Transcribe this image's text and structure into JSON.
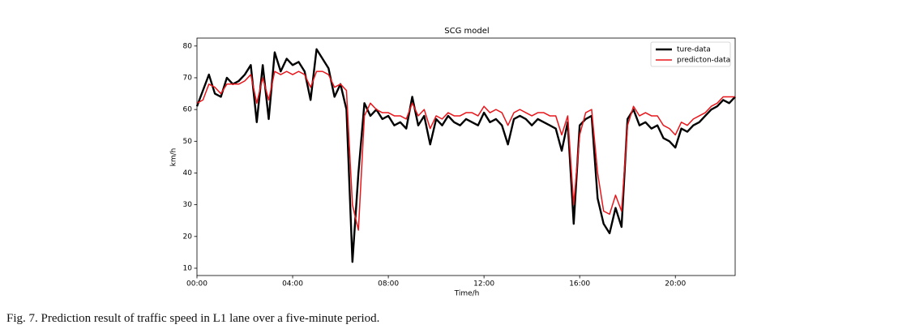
{
  "chart_data": {
    "type": "line",
    "title": "SCG model",
    "x_label": "Time/h",
    "y_label": "km/h",
    "x": [
      0,
      0.25,
      0.5,
      0.75,
      1,
      1.25,
      1.5,
      1.75,
      2,
      2.25,
      2.5,
      2.75,
      3,
      3.25,
      3.5,
      3.75,
      4,
      4.25,
      4.5,
      4.75,
      5,
      5.25,
      5.5,
      5.75,
      6,
      6.25,
      6.5,
      6.75,
      7,
      7.25,
      7.5,
      7.75,
      8,
      8.25,
      8.5,
      8.75,
      9,
      9.25,
      9.5,
      9.75,
      10,
      10.25,
      10.5,
      10.75,
      11,
      11.25,
      11.5,
      11.75,
      12,
      12.25,
      12.5,
      12.75,
      13,
      13.25,
      13.5,
      13.75,
      14,
      14.25,
      14.5,
      14.75,
      15,
      15.25,
      15.5,
      15.75,
      16,
      16.25,
      16.5,
      16.75,
      17,
      17.25,
      17.5,
      17.75,
      18,
      18.25,
      18.5,
      18.75,
      19,
      19.25,
      19.5,
      19.75,
      20,
      20.25,
      20.5,
      20.75,
      21,
      21.25,
      21.5,
      21.75,
      22,
      22.25,
      22.5
    ],
    "series": [
      {
        "name": "ture-data",
        "color": "#000000",
        "values": [
          61,
          66,
          71,
          65,
          64,
          70,
          68,
          69,
          71,
          74,
          56,
          74,
          57,
          78,
          72,
          76,
          74,
          75,
          72,
          63,
          79,
          76,
          73,
          64,
          68,
          60,
          12,
          40,
          62,
          58,
          60,
          57,
          58,
          55,
          56,
          54,
          64,
          55,
          58,
          49,
          57,
          55,
          58,
          56,
          55,
          57,
          56,
          55,
          59,
          56,
          57,
          55,
          49,
          57,
          58,
          57,
          55,
          57,
          56,
          55,
          54,
          47,
          56,
          24,
          55,
          57,
          58,
          32,
          24,
          21,
          29,
          23,
          57,
          60,
          55,
          56,
          54,
          55,
          51,
          50,
          48,
          54,
          53,
          55,
          56,
          58,
          60,
          61,
          63,
          62,
          64
        ]
      },
      {
        "name": "predicton-data",
        "color": "#e8161b",
        "values": [
          62,
          63,
          68,
          67,
          65,
          68,
          68,
          68,
          69,
          71,
          62,
          70,
          63,
          72,
          71,
          72,
          71,
          72,
          71,
          67,
          72,
          72,
          71,
          67,
          68,
          66,
          30,
          22,
          58,
          62,
          60,
          59,
          59,
          58,
          58,
          57,
          62,
          58,
          60,
          54,
          58,
          57,
          59,
          58,
          58,
          59,
          59,
          58,
          61,
          59,
          60,
          59,
          55,
          59,
          60,
          59,
          58,
          59,
          59,
          58,
          58,
          52,
          58,
          30,
          52,
          59,
          60,
          40,
          28,
          27,
          33,
          28,
          55,
          61,
          58,
          59,
          58,
          58,
          55,
          54,
          52,
          56,
          55,
          57,
          58,
          59,
          61,
          62,
          64,
          64,
          64
        ]
      }
    ],
    "xlim": [
      0,
      22.5
    ],
    "ylim": [
      7.7,
      82.5
    ],
    "xticks": [
      {
        "value": 0,
        "label": "00:00"
      },
      {
        "value": 4,
        "label": "04:00"
      },
      {
        "value": 8,
        "label": "08:00"
      },
      {
        "value": 12,
        "label": "12:00"
      },
      {
        "value": 16,
        "label": "16:00"
      },
      {
        "value": 20,
        "label": "20:00"
      }
    ],
    "yticks": [
      10,
      20,
      30,
      40,
      50,
      60,
      70,
      80
    ],
    "legend": "upper right"
  },
  "caption": "Fig. 7.   Prediction result of traffic speed in L1 lane over a five-minute period."
}
